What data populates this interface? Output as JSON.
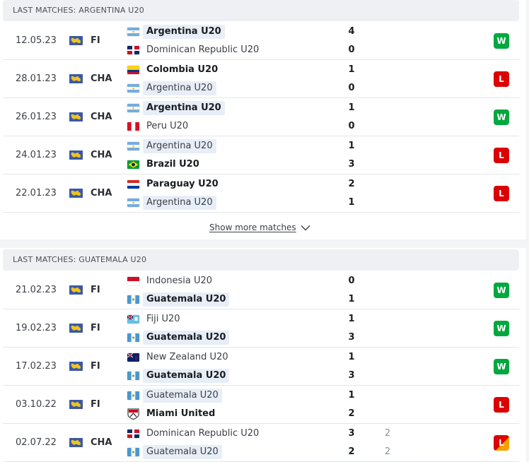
{
  "sections": [
    {
      "header": "LAST MATCHES: ARGENTINA U20",
      "matches": [
        {
          "date": "12.05.23",
          "comp": "FI",
          "home": {
            "name": "Argentina U20",
            "flag": "ar",
            "score": "4",
            "win": true,
            "hl": true
          },
          "away": {
            "name": "Dominican Republic U20",
            "flag": "do",
            "score": "0",
            "win": false,
            "hl": false
          },
          "result": "W"
        },
        {
          "date": "28.01.23",
          "comp": "CHA",
          "home": {
            "name": "Colombia U20",
            "flag": "co",
            "score": "1",
            "win": true,
            "hl": false
          },
          "away": {
            "name": "Argentina U20",
            "flag": "ar",
            "score": "0",
            "win": false,
            "hl": true
          },
          "result": "L"
        },
        {
          "date": "26.01.23",
          "comp": "CHA",
          "home": {
            "name": "Argentina U20",
            "flag": "ar",
            "score": "1",
            "win": true,
            "hl": true
          },
          "away": {
            "name": "Peru U20",
            "flag": "pe",
            "score": "0",
            "win": false,
            "hl": false
          },
          "result": "W"
        },
        {
          "date": "24.01.23",
          "comp": "CHA",
          "home": {
            "name": "Argentina U20",
            "flag": "ar",
            "score": "1",
            "win": false,
            "hl": true
          },
          "away": {
            "name": "Brazil U20",
            "flag": "br",
            "score": "3",
            "win": true,
            "hl": false
          },
          "result": "L"
        },
        {
          "date": "22.01.23",
          "comp": "CHA",
          "home": {
            "name": "Paraguay U20",
            "flag": "py",
            "score": "2",
            "win": true,
            "hl": false
          },
          "away": {
            "name": "Argentina U20",
            "flag": "ar",
            "score": "1",
            "win": false,
            "hl": true
          },
          "result": "L"
        }
      ],
      "show_more": "Show more matches"
    },
    {
      "header": "LAST MATCHES: GUATEMALA U20",
      "matches": [
        {
          "date": "21.02.23",
          "comp": "FI",
          "home": {
            "name": "Indonesia U20",
            "flag": "id",
            "score": "0",
            "win": false,
            "hl": false
          },
          "away": {
            "name": "Guatemala U20",
            "flag": "gt",
            "score": "1",
            "win": true,
            "hl": true
          },
          "result": "W"
        },
        {
          "date": "19.02.23",
          "comp": "FI",
          "home": {
            "name": "Fiji U20",
            "flag": "fj",
            "score": "1",
            "win": false,
            "hl": false
          },
          "away": {
            "name": "Guatemala U20",
            "flag": "gt",
            "score": "3",
            "win": true,
            "hl": true
          },
          "result": "W"
        },
        {
          "date": "17.02.23",
          "comp": "FI",
          "home": {
            "name": "New Zealand U20",
            "flag": "nz",
            "score": "1",
            "win": false,
            "hl": false
          },
          "away": {
            "name": "Guatemala U20",
            "flag": "gt",
            "score": "3",
            "win": true,
            "hl": true
          },
          "result": "W"
        },
        {
          "date": "03.10.22",
          "comp": "FI",
          "home": {
            "name": "Guatemala U20",
            "flag": "gt",
            "score": "1",
            "win": false,
            "hl": true
          },
          "away": {
            "name": "Miami United",
            "flag": "miami",
            "score": "2",
            "win": true,
            "hl": false
          },
          "result": "L"
        },
        {
          "date": "02.07.22",
          "comp": "CHA",
          "home": {
            "name": "Dominican Republic U20",
            "flag": "do",
            "score": "3",
            "pen": "2",
            "win": false,
            "hl": false
          },
          "away": {
            "name": "Guatemala U20",
            "flag": "gt",
            "score": "2",
            "pen": "2",
            "win": false,
            "hl": true
          },
          "result": "LP"
        }
      ]
    }
  ],
  "badge_labels": {
    "W": "W",
    "L": "L",
    "LP": "L"
  },
  "icons": {
    "competition": "world-flag-icon",
    "show_more": "chevron-down-icon"
  },
  "colors": {
    "win": "#00a83f",
    "loss": "#dc0000",
    "penalty": "#f5a000",
    "header_bg": "#eef0f3"
  }
}
